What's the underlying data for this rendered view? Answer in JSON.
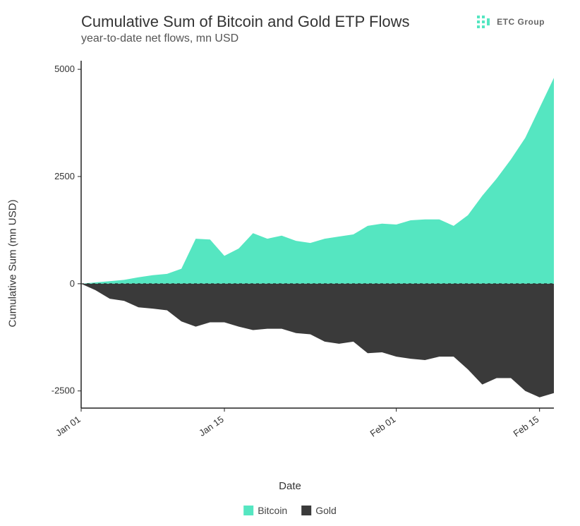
{
  "title": "Cumulative Sum of Bitcoin and Gold ETP Flows",
  "subtitle": "year-to-date net flows, mn USD",
  "brand": {
    "label": "ETC Group",
    "accent": "#55e6c1"
  },
  "y_axis_title": "Cumulative Sum (mn USD)",
  "x_axis_title": "Date",
  "legend": {
    "series": [
      {
        "name": "Bitcoin",
        "color": "#55e6c1"
      },
      {
        "name": "Gold",
        "color": "#3a3a3a"
      }
    ]
  },
  "chart": {
    "type": "area",
    "background_color": "#ffffff",
    "zero_line": {
      "style": "dashed",
      "color": "#222222",
      "width": 1
    },
    "axis_line_color": "#222222",
    "axis_line_width": 1.5,
    "tick_color": "#222222",
    "label_fontsize": 13,
    "title_fontsize": 22,
    "subtitle_fontsize": 16,
    "x": {
      "domain_index": [
        0,
        33
      ],
      "ticks": [
        {
          "pos": 0,
          "label": "Jan 01"
        },
        {
          "pos": 10,
          "label": "Jan 15"
        },
        {
          "pos": 22,
          "label": "Feb 01"
        },
        {
          "pos": 32,
          "label": "Feb 15"
        }
      ],
      "label_rotation_deg": -35
    },
    "y": {
      "lim": [
        -2900,
        5200
      ],
      "ticks": [
        {
          "pos": -2500,
          "label": "-2500"
        },
        {
          "pos": 0,
          "label": "0"
        },
        {
          "pos": 2500,
          "label": "2500"
        },
        {
          "pos": 5000,
          "label": "5000"
        }
      ]
    },
    "series": [
      {
        "name": "Bitcoin",
        "color": "#55e6c1",
        "fill_opacity": 1.0,
        "values": [
          0,
          30,
          60,
          90,
          150,
          200,
          230,
          350,
          1050,
          1030,
          650,
          820,
          1180,
          1050,
          1120,
          1000,
          950,
          1050,
          1100,
          1150,
          1350,
          1400,
          1380,
          1480,
          1500,
          1500,
          1350,
          1600,
          2050,
          2450,
          2900,
          3400,
          4100,
          4800
        ]
      },
      {
        "name": "Gold",
        "color": "#3a3a3a",
        "fill_opacity": 1.0,
        "values": [
          0,
          -150,
          -350,
          -400,
          -550,
          -580,
          -620,
          -880,
          -1000,
          -900,
          -900,
          -1000,
          -1080,
          -1050,
          -1050,
          -1150,
          -1180,
          -1350,
          -1400,
          -1350,
          -1620,
          -1600,
          -1700,
          -1750,
          -1780,
          -1700,
          -1700,
          -2000,
          -2350,
          -2200,
          -2200,
          -2500,
          -2650,
          -2550
        ]
      }
    ]
  }
}
